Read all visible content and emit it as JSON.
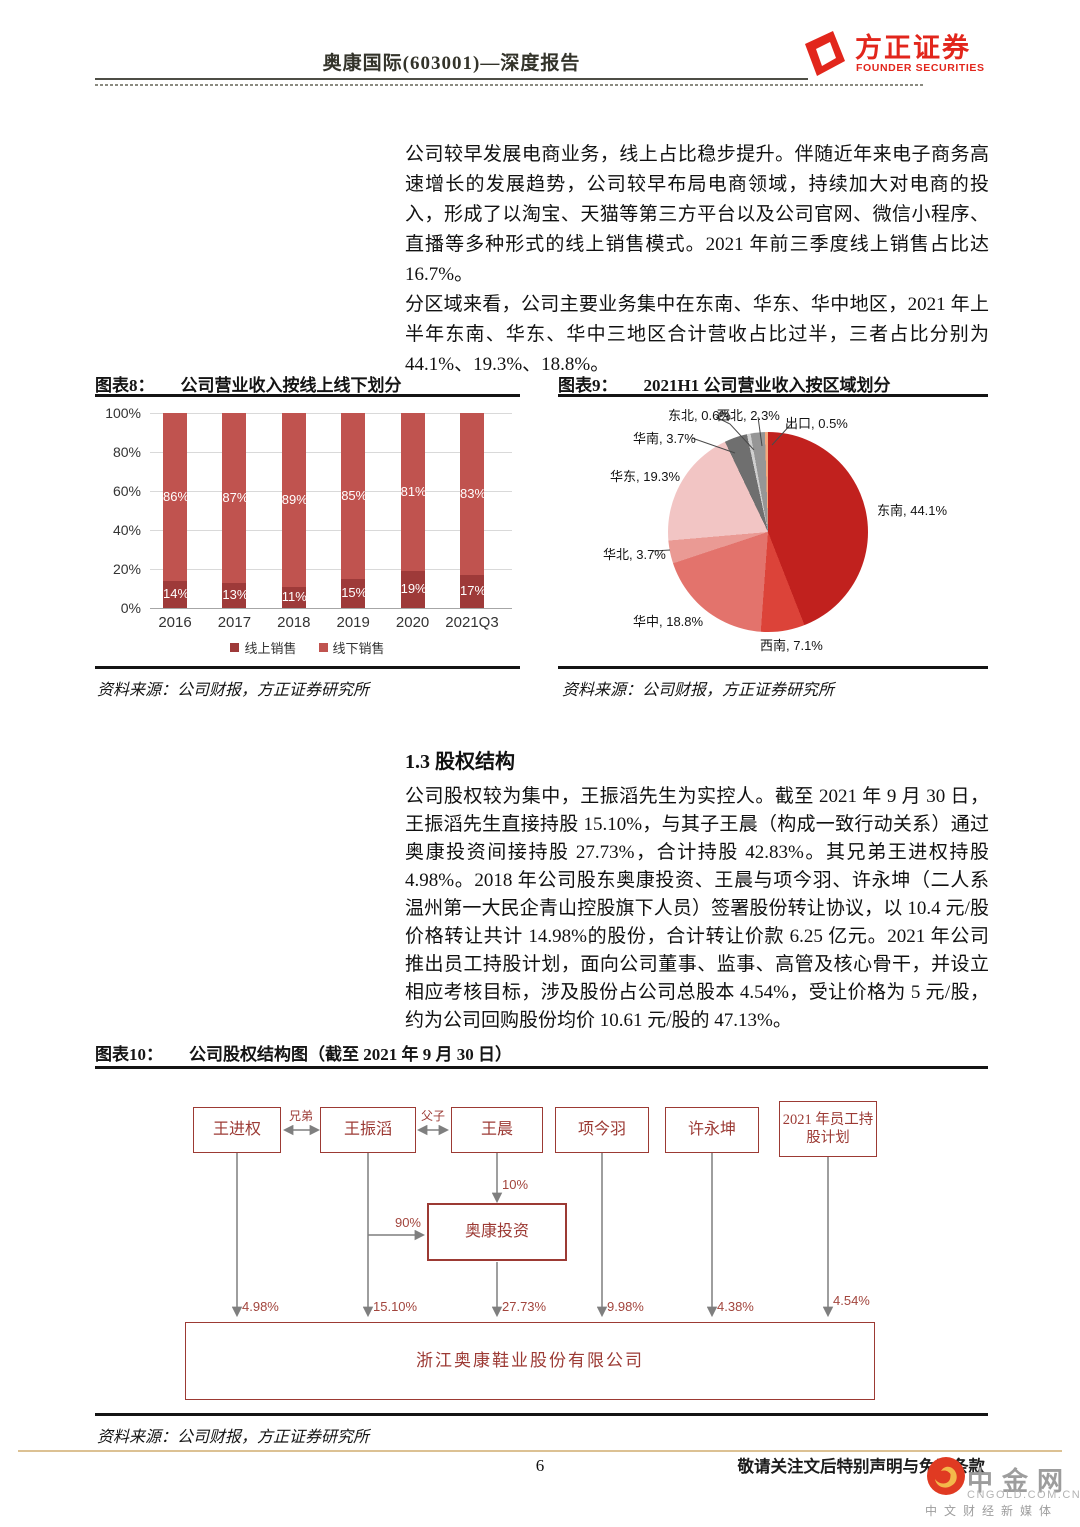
{
  "header": {
    "doc_title": "奥康国际(603001)—深度报告",
    "brand_cn": "方正证券",
    "brand_en": "FOUNDER SECURITIES"
  },
  "paragraphs": {
    "p1": "公司较早发展电商业务，线上占比稳步提升。伴随近年来电子商务高速增长的发展趋势，公司较早布局电商领域，持续加大对电商的投入，形成了以淘宝、天猫等第三方平台以及公司官网、微信小程序、直播等多种形式的线上销售模式。2021 年前三季度线上销售占比达 16.7%。",
    "p2": "分区域来看，公司主要业务集中在东南、华东、华中地区，2021 年上半年东南、华东、华中三地区合计营收占比过半，三者占比分别为 44.1%、19.3%、18.8%。",
    "section_heading": "1.3 股权结构",
    "p3": "公司股权较为集中，王振滔先生为实控人。截至 2021 年 9 月 30 日，王振滔先生直接持股 15.10%，与其子王晨（构成一致行动关系）通过奥康投资间接持股 27.73%，合计持股 42.83%。其兄弟王进权持股 4.98%。2018 年公司股东奥康投资、王晨与项今羽、许永坤（二人系温州第一大民企青山控股旗下人员）签署股份转让协议，以 10.4 元/股价格转让共计 14.98%的股份，合计转让价款 6.25 亿元。2021 年公司推出员工持股计划，面向公司董事、监事、高管及核心骨干，并设立相应考核目标，涉及股份占公司总股本 4.54%，受让价格为 5 元/股，约为公司回购股份均价 10.61 元/股的 47.13%。"
  },
  "figure8": {
    "label": "图表8：",
    "title": "公司营业收入按线上线下划分",
    "source": "资料来源：公司财报，方正证券研究所"
  },
  "figure9": {
    "label": "图表9：",
    "title": "2021H1 公司营业收入按区域划分",
    "source": "资料来源：公司财报，方正证券研究所"
  },
  "figure10": {
    "label": "图表10：",
    "title": "公司股权结构图（截至 2021 年 9 月 30 日）",
    "source": "资料来源：公司财报，方正证券研究所"
  },
  "chart_data": [
    {
      "type": "bar",
      "stacked": true,
      "title": "公司营业收入按线上线下划分",
      "categories": [
        "2016",
        "2017",
        "2018",
        "2019",
        "2020",
        "2021Q3"
      ],
      "series": [
        {
          "name": "线上销售",
          "color": "#9e3a39",
          "values": [
            14,
            13,
            11,
            15,
            19,
            17
          ]
        },
        {
          "name": "线下销售",
          "color": "#c0534f",
          "values": [
            86,
            87,
            89,
            85,
            81,
            83
          ]
        }
      ],
      "unit": "%",
      "ylim": [
        0,
        100
      ],
      "yticks": [
        "0%",
        "20%",
        "40%",
        "60%",
        "80%",
        "100%"
      ],
      "grid": true,
      "legend_position": "bottom"
    },
    {
      "type": "pie",
      "title": "2021H1 公司营业收入按区域划分",
      "start_angle_deg": 0,
      "direction": "clockwise",
      "slices": [
        {
          "label": "东南",
          "value": 44.1,
          "color": "#c1211e"
        },
        {
          "label": "西南",
          "value": 7.1,
          "color": "#dc4339"
        },
        {
          "label": "华中",
          "value": 18.8,
          "color": "#e3736c"
        },
        {
          "label": "华北",
          "value": 3.7,
          "color": "#ea9a94"
        },
        {
          "label": "华东",
          "value": 19.3,
          "color": "#f2c5c4"
        },
        {
          "label": "华南",
          "value": 3.7,
          "color": "#6f6f6f"
        },
        {
          "label": "东北",
          "value": 0.6,
          "color": "#cfcfcf"
        },
        {
          "label": "西北",
          "value": 2.3,
          "color": "#969696"
        },
        {
          "label": "出口",
          "value": 0.5,
          "color": "#f5a97d"
        }
      ]
    }
  ],
  "org_chart": {
    "top_nodes": [
      "王进权",
      "王振滔",
      "王晨",
      "项今羽",
      "许永坤",
      "2021 年员工持股计划"
    ],
    "relation_labels": [
      "兄弟",
      "父子"
    ],
    "mid_node": "奥康投资",
    "mid_edges": [
      {
        "from": "王振滔",
        "pct": "90%"
      },
      {
        "from": "王晨",
        "pct": "10%"
      }
    ],
    "bottom_node": "浙江奥康鞋业股份有限公司",
    "holdings": [
      {
        "holder": "王进权",
        "pct": "4.98%"
      },
      {
        "holder": "王振滔",
        "pct": "15.10%"
      },
      {
        "holder": "奥康投资",
        "pct": "27.73%"
      },
      {
        "holder": "项今羽",
        "pct": "9.98%"
      },
      {
        "holder": "许永坤",
        "pct": "4.38%"
      },
      {
        "holder": "2021 年员工持股计划",
        "pct": "4.54%"
      }
    ]
  },
  "footer": {
    "page_number": "6",
    "disclaimer": "敬请关注文后特别声明与免责条款",
    "watermark": {
      "name_cn": "中金网",
      "domain": "CNGOLD.COM.CN",
      "tagline": "中文财经新媒体"
    }
  },
  "colors": {
    "brand_red": "#e2261c",
    "org_red": "#9c3a34",
    "online_bar": "#9e3a39",
    "offline_bar": "#c0534f",
    "footer_rule": "#dcc193"
  }
}
